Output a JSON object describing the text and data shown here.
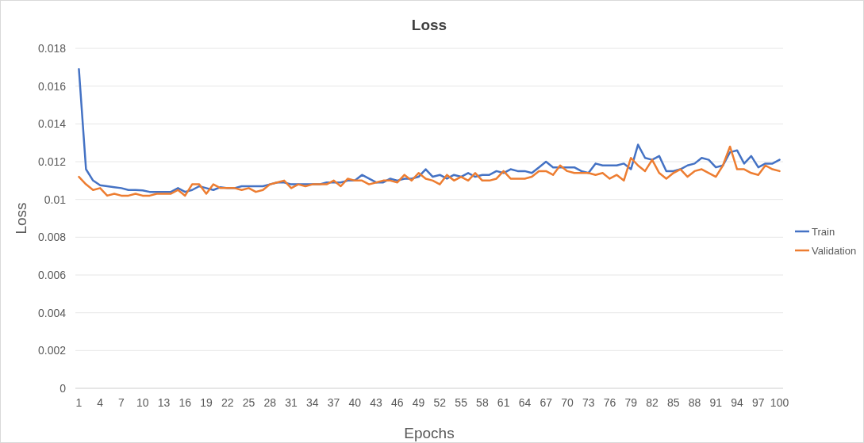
{
  "chart_data": {
    "type": "line",
    "title": "Loss",
    "xlabel": "Epochs",
    "ylabel": "Loss",
    "categories": [
      "1",
      null,
      null,
      "4",
      null,
      null,
      "7",
      null,
      null,
      "10",
      null,
      null,
      "13",
      null,
      null,
      "16",
      null,
      null,
      "19",
      null,
      null,
      "22",
      null,
      null,
      "25",
      null,
      null,
      "28",
      null,
      null,
      "31",
      null,
      null,
      "34",
      null,
      null,
      "37",
      null,
      null,
      "40",
      null,
      null,
      "43",
      null,
      null,
      "46",
      null,
      null,
      "49",
      null,
      null,
      "52",
      null,
      null,
      "55",
      null,
      null,
      "58",
      null,
      null,
      "61",
      null,
      null,
      "64",
      null,
      null,
      "67",
      null,
      null,
      "70",
      null,
      null,
      "73",
      null,
      null,
      "76",
      null,
      null,
      "79",
      null,
      null,
      "82",
      null,
      null,
      "85",
      null,
      null,
      "88",
      null,
      null,
      "91",
      null,
      null,
      "94",
      null,
      null,
      "97",
      null,
      null,
      "100"
    ],
    "series": [
      {
        "name": "Train",
        "color": "#4472c4",
        "values": [
          0.0169,
          0.0116,
          0.011,
          0.01075,
          0.0107,
          0.01065,
          0.0106,
          0.0105,
          0.0105,
          0.01048,
          0.0104,
          0.0104,
          0.0104,
          0.0104,
          0.0106,
          0.0104,
          0.0105,
          0.0107,
          0.0106,
          0.0105,
          0.01065,
          0.0106,
          0.0106,
          0.0107,
          0.0107,
          0.0107,
          0.0107,
          0.0108,
          0.0109,
          0.0109,
          0.0108,
          0.0108,
          0.0108,
          0.0108,
          0.0108,
          0.0109,
          0.0109,
          0.0109,
          0.011,
          0.011,
          0.0113,
          0.0111,
          0.0109,
          0.0109,
          0.0111,
          0.011,
          0.0111,
          0.0111,
          0.0112,
          0.0116,
          0.0112,
          0.0113,
          0.0111,
          0.0113,
          0.0112,
          0.0114,
          0.0112,
          0.0113,
          0.0113,
          0.0115,
          0.0114,
          0.0116,
          0.0115,
          0.0115,
          0.0114,
          0.0117,
          0.012,
          0.0117,
          0.0117,
          0.0117,
          0.0117,
          0.0115,
          0.0114,
          0.0119,
          0.0118,
          0.0118,
          0.0118,
          0.0119,
          0.0116,
          0.0129,
          0.0122,
          0.0121,
          0.0123,
          0.0115,
          0.0115,
          0.0116,
          0.0118,
          0.0119,
          0.0122,
          0.0121,
          0.0117,
          0.0118,
          0.0125,
          0.0126,
          0.0119,
          0.0123,
          0.0117,
          0.0119,
          0.0119,
          0.0121
        ]
      },
      {
        "name": "Validation",
        "color": "#ed7d31",
        "values": [
          0.0112,
          0.0108,
          0.0105,
          0.0106,
          0.0102,
          0.0103,
          0.0102,
          0.0102,
          0.0103,
          0.0102,
          0.0102,
          0.0103,
          0.0103,
          0.0103,
          0.0105,
          0.0102,
          0.0108,
          0.0108,
          0.0103,
          0.0108,
          0.0106,
          0.0106,
          0.0106,
          0.0105,
          0.0106,
          0.0104,
          0.0105,
          0.0108,
          0.0109,
          0.011,
          0.0106,
          0.0108,
          0.0107,
          0.0108,
          0.0108,
          0.0108,
          0.011,
          0.0107,
          0.0111,
          0.011,
          0.011,
          0.0108,
          0.0109,
          0.011,
          0.011,
          0.0109,
          0.0113,
          0.011,
          0.0114,
          0.0111,
          0.011,
          0.0108,
          0.0113,
          0.011,
          0.0112,
          0.011,
          0.0114,
          0.011,
          0.011,
          0.0111,
          0.0115,
          0.0111,
          0.0111,
          0.0111,
          0.0112,
          0.0115,
          0.0115,
          0.0113,
          0.0118,
          0.0115,
          0.0114,
          0.0114,
          0.0114,
          0.0113,
          0.0114,
          0.0111,
          0.0113,
          0.011,
          0.0122,
          0.0118,
          0.0115,
          0.0121,
          0.0114,
          0.0111,
          0.0114,
          0.0116,
          0.0112,
          0.0115,
          0.0116,
          0.0114,
          0.0112,
          0.0118,
          0.0128,
          0.0116,
          0.0116,
          0.0114,
          0.0113,
          0.0118,
          0.0116,
          0.0115
        ]
      }
    ],
    "ylim": [
      0,
      0.018
    ],
    "yticks": [
      0,
      0.002,
      0.004,
      0.006,
      0.008,
      0.01,
      0.012,
      0.014,
      0.016,
      0.018
    ],
    "grid": "y",
    "legend": "right",
    "marker": "none",
    "line_style": "solid"
  }
}
